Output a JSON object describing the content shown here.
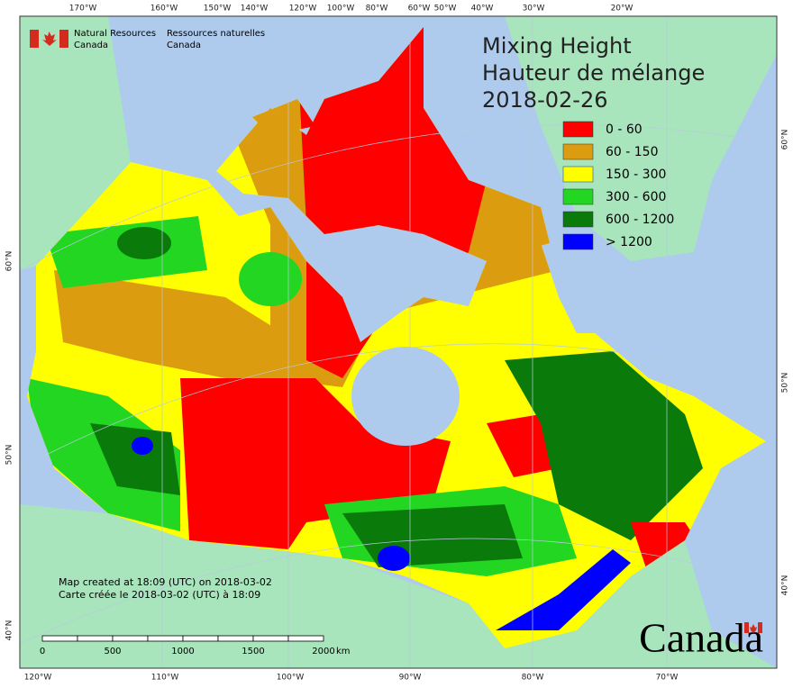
{
  "header": {
    "department_en": [
      "Natural Resources",
      "Canada"
    ],
    "department_fr": [
      "Ressources naturelles",
      "Canada"
    ]
  },
  "title": {
    "en": "Mixing Height",
    "fr": "Hauteur de mélange",
    "date": "2018-02-26"
  },
  "legend": [
    {
      "label": "0 - 60",
      "color": "#ff0000"
    },
    {
      "label": "60 - 150",
      "color": "#dc9c10"
    },
    {
      "label": "150 - 300",
      "color": "#ffff00"
    },
    {
      "label": "300 - 600",
      "color": "#22d622"
    },
    {
      "label": "600 - 1200",
      "color": "#0a7a0a"
    },
    {
      "label": "> 1200",
      "color": "#0000ff"
    }
  ],
  "graticule": {
    "top": [
      "170°W",
      "160°W",
      "150°W",
      "140°W",
      "120°W",
      "100°W",
      "80°W",
      "60°W",
      "50°W",
      "40°W",
      "30°W",
      "20°W"
    ],
    "bottom": [
      "120°W",
      "110°W",
      "100°W",
      "90°W",
      "80°W",
      "70°W"
    ],
    "left": [
      "60°N",
      "50°N",
      "40°N"
    ],
    "right": [
      "60°N",
      "50°N",
      "40°N"
    ]
  },
  "footer": [
    "Map created at 18:09 (UTC) on 2018-03-02",
    "Carte créée le 2018-03-02 (UTC) à 18:09"
  ],
  "scale_bar": {
    "labels": [
      "0",
      "500",
      "1000",
      "1500",
      "2000"
    ],
    "unit": "km"
  },
  "wordmark": "Canada"
}
